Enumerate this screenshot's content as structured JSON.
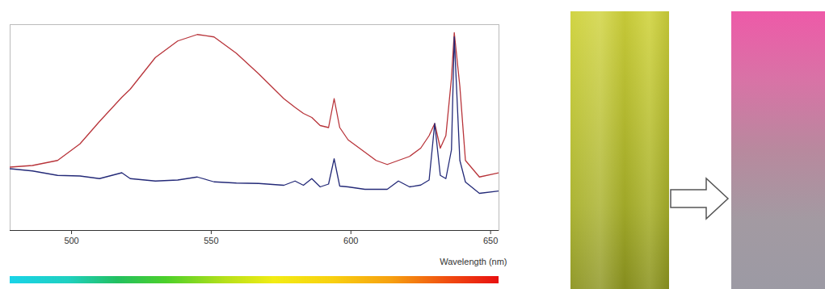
{
  "chart_data": {
    "type": "line",
    "xlabel": "Wavelength (nm)",
    "x": [
      478,
      486,
      495,
      503,
      510,
      518,
      521,
      530,
      538,
      545,
      551,
      559,
      567,
      576,
      580,
      583,
      586,
      589,
      592,
      594,
      596,
      599,
      605,
      609,
      613,
      617,
      621,
      625,
      628,
      630,
      632,
      634,
      636,
      637,
      639,
      641,
      646,
      653
    ],
    "series": [
      {
        "color": "#b8343a",
        "values": [
          31.4,
          32.2,
          34.7,
          42.9,
          54,
          66,
          70,
          85.7,
          93.9,
          97.1,
          95.9,
          87.8,
          77.6,
          65.3,
          61,
          58,
          56,
          52,
          51,
          65.3,
          51,
          44.9,
          38.8,
          34.7,
          32.7,
          34.7,
          36.7,
          40.8,
          47,
          53,
          40.8,
          47,
          75.5,
          98,
          71.4,
          34.7,
          26.5,
          28.6
        ]
      },
      {
        "color": "#242a78",
        "values": [
          30.6,
          29.5,
          27.3,
          27,
          25.7,
          28.6,
          25.7,
          24.5,
          25,
          26.5,
          24.1,
          23.5,
          23.3,
          22.4,
          24.5,
          22.4,
          25.7,
          21.6,
          23,
          35.5,
          22,
          21.6,
          20.4,
          20.4,
          20.4,
          24.5,
          21.6,
          22.5,
          25,
          53,
          27.3,
          25.7,
          40,
          95.9,
          34.7,
          24,
          18.4,
          19.6
        ]
      }
    ],
    "xlim": [
      478,
      653
    ],
    "xticks": [
      500,
      550,
      600,
      650
    ],
    "ylim": [
      0,
      102
    ],
    "tick_labels": "x",
    "grid": false
  }
}
